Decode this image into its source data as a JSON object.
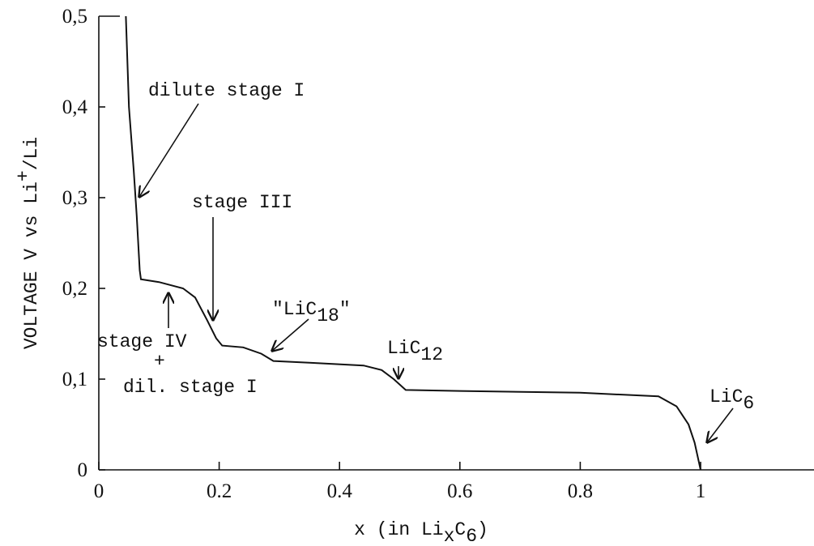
{
  "chart_data": {
    "type": "line",
    "ylabel": [
      {
        "text": "VOLTAGE V vs Li"
      },
      {
        "text": "+",
        "sup": true
      },
      {
        "text": "/Li"
      }
    ],
    "xlabel": [
      {
        "text": "x (in Li"
      },
      {
        "text": "x",
        "sub": true
      },
      {
        "text": "C"
      },
      {
        "text": "6",
        "sub": true
      },
      {
        "text": ")"
      }
    ],
    "x": [
      0.045,
      0.05,
      0.058,
      0.063,
      0.068,
      0.07,
      0.1,
      0.14,
      0.16,
      0.18,
      0.195,
      0.205,
      0.24,
      0.27,
      0.29,
      0.35,
      0.44,
      0.47,
      0.49,
      0.51,
      0.6,
      0.8,
      0.93,
      0.96,
      0.98,
      0.99,
      1.0
    ],
    "values": [
      0.5,
      0.4,
      0.33,
      0.28,
      0.22,
      0.21,
      0.207,
      0.2,
      0.19,
      0.165,
      0.145,
      0.137,
      0.135,
      0.128,
      0.12,
      0.118,
      0.115,
      0.11,
      0.1,
      0.088,
      0.087,
      0.085,
      0.081,
      0.07,
      0.05,
      0.03,
      0.0
    ],
    "color": "#111111",
    "xlim": [
      0,
      1.19
    ],
    "ylim": [
      0,
      0.5
    ],
    "xticks": [
      0,
      0.2,
      0.4,
      0.6,
      0.8,
      1
    ],
    "yticks": [
      0,
      {
        "value": 0.1,
        "label": "0,1"
      },
      {
        "value": 0.2,
        "label": "0,2"
      },
      {
        "value": 0.3,
        "label": "0,3"
      },
      {
        "value": 0.4,
        "label": "0,4"
      },
      {
        "value": 0.5,
        "label": "0,5"
      }
    ],
    "annotations": [
      {
        "parts": [
          {
            "text": "dilute stage I"
          }
        ]
      },
      {
        "parts": [
          {
            "text": "stage III"
          }
        ]
      },
      {
        "parts": [
          {
            "text": "stage IV"
          }
        ]
      },
      {
        "parts": [
          {
            "text": "+"
          }
        ]
      },
      {
        "parts": [
          {
            "text": "dil. stage I"
          }
        ]
      },
      {
        "parts": [
          {
            "text": "\"LiC"
          },
          {
            "text": "18",
            "sub": true
          },
          {
            "text": "\""
          }
        ]
      },
      {
        "parts": [
          {
            "text": "LiC"
          },
          {
            "text": "12",
            "sub": true
          }
        ]
      },
      {
        "parts": [
          {
            "text": "LiC"
          },
          {
            "text": "6",
            "sub": true
          }
        ]
      }
    ]
  }
}
